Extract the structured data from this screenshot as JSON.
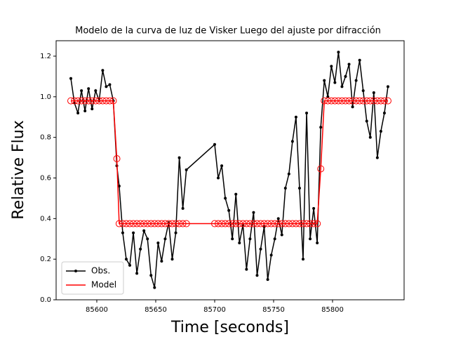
{
  "chart_data": {
    "type": "line",
    "title": "Modelo de la curva de luz de Visker Luego del ajuste por difracción",
    "x_label": "Time [seconds]",
    "y_label": "Relative Flux",
    "x": [
      85578,
      85581,
      85584,
      85587,
      85590,
      85593,
      85596,
      85599,
      85602,
      85605,
      85608,
      85611,
      85614,
      85617,
      85619,
      85622,
      85625,
      85628,
      85631,
      85634,
      85637,
      85640,
      85643,
      85646,
      85649,
      85652,
      85655,
      85658,
      85661,
      85664,
      85667,
      85670,
      85673,
      85676,
      85700,
      85703,
      85706,
      85709,
      85712,
      85715,
      85718,
      85721,
      85724,
      85727,
      85730,
      85733,
      85736,
      85739,
      85742,
      85745,
      85748,
      85751,
      85754,
      85757,
      85760,
      85763,
      85766,
      85769,
      85772,
      85775,
      85778,
      85781,
      85784,
      85787,
      85790,
      85793,
      85796,
      85799,
      85802,
      85805,
      85808,
      85811,
      85814,
      85817,
      85820,
      85823,
      85826,
      85829,
      85832,
      85835,
      85838,
      85841,
      85844,
      85847
    ],
    "series": [
      {
        "name": "Obs.",
        "color": "#000000",
        "marker": "dot",
        "values": [
          1.09,
          0.97,
          0.92,
          1.03,
          0.93,
          1.04,
          0.94,
          1.03,
          0.98,
          1.13,
          1.05,
          1.06,
          0.98,
          0.66,
          0.56,
          0.33,
          0.2,
          0.17,
          0.33,
          0.13,
          0.25,
          0.34,
          0.3,
          0.12,
          0.06,
          0.28,
          0.19,
          0.3,
          0.38,
          0.2,
          0.33,
          0.7,
          0.45,
          0.64,
          0.765,
          0.6,
          0.66,
          0.5,
          0.44,
          0.3,
          0.52,
          0.28,
          0.37,
          0.15,
          0.3,
          0.43,
          0.12,
          0.25,
          0.36,
          0.1,
          0.22,
          0.3,
          0.4,
          0.32,
          0.55,
          0.62,
          0.78,
          0.9,
          0.55,
          0.2,
          0.92,
          0.3,
          0.45,
          0.28,
          0.85,
          1.08,
          1.0,
          1.15,
          1.07,
          1.22,
          1.05,
          1.1,
          1.16,
          0.95,
          1.08,
          1.18,
          1.03,
          0.88,
          0.8,
          1.02,
          0.7,
          0.83,
          0.92,
          1.05
        ]
      },
      {
        "name": "Model",
        "color": "#ff0000",
        "marker": "circle",
        "values": [
          0.98,
          0.98,
          0.98,
          0.98,
          0.98,
          0.98,
          0.98,
          0.98,
          0.98,
          0.98,
          0.98,
          0.98,
          0.98,
          0.695,
          0.375,
          0.375,
          0.375,
          0.375,
          0.375,
          0.375,
          0.375,
          0.375,
          0.375,
          0.375,
          0.375,
          0.375,
          0.375,
          0.375,
          0.375,
          0.375,
          0.375,
          0.375,
          0.375,
          0.375,
          0.375,
          0.375,
          0.375,
          0.375,
          0.375,
          0.375,
          0.375,
          0.375,
          0.375,
          0.375,
          0.375,
          0.375,
          0.375,
          0.375,
          0.375,
          0.375,
          0.375,
          0.375,
          0.375,
          0.375,
          0.375,
          0.375,
          0.375,
          0.375,
          0.375,
          0.375,
          0.375,
          0.375,
          0.375,
          0.375,
          0.645,
          0.98,
          0.98,
          0.98,
          0.98,
          0.98,
          0.98,
          0.98,
          0.98,
          0.98,
          0.98,
          0.98,
          0.98,
          0.98,
          0.98,
          0.98,
          0.98,
          0.98,
          0.98,
          0.98
        ]
      }
    ],
    "xlim": [
      85565.5,
      85860.7
    ],
    "ylim": [
      0,
      1.276
    ],
    "xticks": [
      85600,
      85650,
      85700,
      85750,
      85800
    ],
    "yticks": [
      {
        "value": 0,
        "label": "0.0"
      },
      {
        "value": 0.2,
        "label": "0.2"
      },
      {
        "value": 0.4,
        "label": "0.4"
      },
      {
        "value": 0.6,
        "label": "0.6"
      },
      {
        "value": 0.8,
        "label": "0.8"
      },
      {
        "value": 1.0,
        "label": "1.0"
      },
      {
        "value": 1.2,
        "label": "1.2"
      }
    ],
    "legend": "lower left",
    "grid": false
  }
}
